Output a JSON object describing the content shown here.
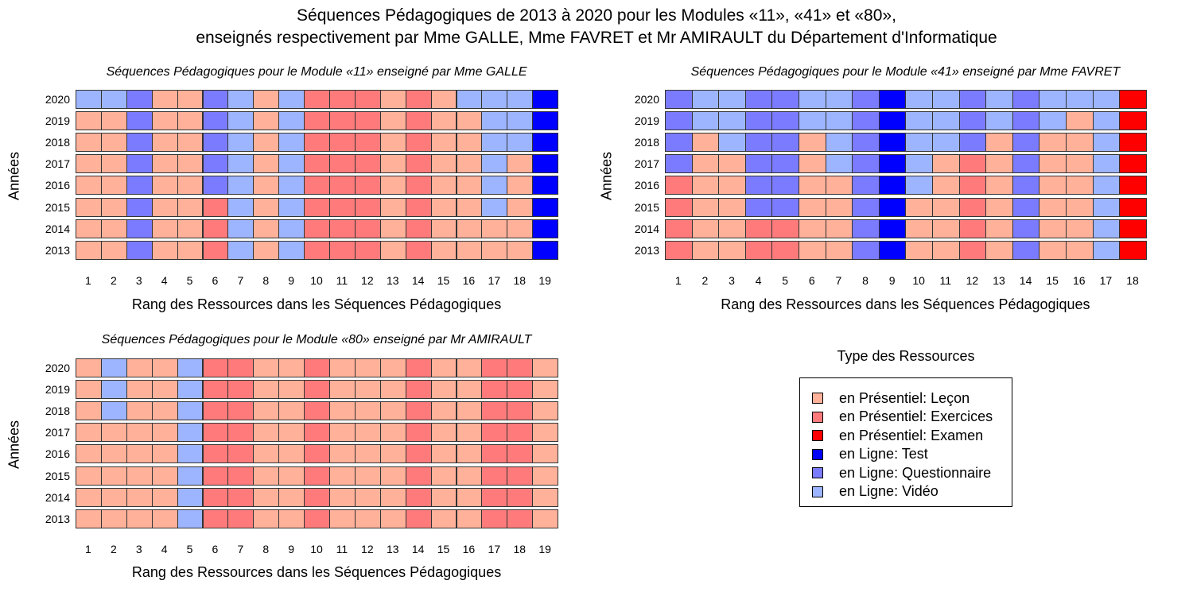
{
  "title": {
    "line1": "Séquences Pédagogiques de 2013 à 2020 pour les Modules «11», «41» et «80»,",
    "line2": "enseignés respectivement par Mme GALLE, Mme FAVRET et Mr AMIRAULT du Département d'Informatique"
  },
  "colors": {
    "lecon": "#FFB19A",
    "exercices": "#FF7B7B",
    "examen": "#FF0000",
    "test": "#0000FF",
    "questionnaire": "#7B7BFF",
    "video": "#9DB5FF"
  },
  "legend": {
    "title": "Type des Ressources",
    "items": [
      {
        "key": "lecon",
        "label": "en Présentiel: Leçon"
      },
      {
        "key": "exercices",
        "label": "en Présentiel: Exercices"
      },
      {
        "key": "examen",
        "label": "en Présentiel: Examen"
      },
      {
        "key": "test",
        "label": "en Ligne: Test"
      },
      {
        "key": "questionnaire",
        "label": "en Ligne: Questionnaire"
      },
      {
        "key": "video",
        "label": "en Ligne: Vidéo"
      }
    ]
  },
  "chart_data": [
    {
      "type": "heatmap",
      "title": "Séquences Pédagogiques pour le Module «11» enseigné par Mme GALLE",
      "xlabel": "Rang des Ressources dans les Séquences Pédagogiques",
      "ylabel": "Années",
      "years": [
        "2020",
        "2019",
        "2018",
        "2017",
        "2016",
        "2015",
        "2014",
        "2013"
      ],
      "ranks": [
        "1",
        "2",
        "3",
        "4",
        "5",
        "6",
        "7",
        "8",
        "9",
        "10",
        "11",
        "12",
        "13",
        "14",
        "15",
        "16",
        "17",
        "18",
        "19"
      ],
      "code_key": {
        "L": "lecon",
        "E": "exercices",
        "X": "examen",
        "T": "test",
        "Q": "questionnaire",
        "V": "video"
      },
      "rows": [
        "VVQLLQVLVEEELELVVVT",
        "LLQLLQVLVEEELELLVVT",
        "LLQLLQVLVEEELELLVVT",
        "LLQLLQVLVEEELELLVLT",
        "LLQLLQVLVEEELELLVLT",
        "LLQLLEVLVEEELELLVLT",
        "LLQLLEVLVEEELELLLLT",
        "LLQLLEVLVEEELELLLLT"
      ]
    },
    {
      "type": "heatmap",
      "title": "Séquences Pédagogiques pour le Module «41» enseigné par Mme FAVRET",
      "xlabel": "Rang des Ressources dans les Séquences Pédagogiques",
      "ylabel": "Années",
      "years": [
        "2020",
        "2019",
        "2018",
        "2017",
        "2016",
        "2015",
        "2014",
        "2013"
      ],
      "ranks": [
        "1",
        "2",
        "3",
        "4",
        "5",
        "6",
        "7",
        "8",
        "9",
        "10",
        "11",
        "12",
        "13",
        "14",
        "15",
        "16",
        "17",
        "18"
      ],
      "code_key": {
        "L": "lecon",
        "E": "exercices",
        "X": "examen",
        "T": "test",
        "Q": "questionnaire",
        "V": "video"
      },
      "rows": [
        "QVVQQVVQTVVQVQVVVX",
        "QVVQQVVQTVVQVQVLVX",
        "QLVQQLVQTVVQLQLLVX",
        "QLLQQLVQTVLELQLLVX",
        "ELLQQLLQTVLELQLLVX",
        "ELLQQLLQTLLELQLLVX",
        "ELLEELLQTLLELQLLVX",
        "ELLEELLQTLLELQLLVX"
      ]
    },
    {
      "type": "heatmap",
      "title": "Séquences Pédagogiques pour le Module «80» enseigné par Mr AMIRAULT",
      "xlabel": "Rang des Ressources dans les Séquences Pédagogiques",
      "ylabel": "Années",
      "years": [
        "2020",
        "2019",
        "2018",
        "2017",
        "2016",
        "2015",
        "2014",
        "2013"
      ],
      "ranks": [
        "1",
        "2",
        "3",
        "4",
        "5",
        "6",
        "7",
        "8",
        "9",
        "10",
        "11",
        "12",
        "13",
        "14",
        "15",
        "16",
        "17",
        "18",
        "19"
      ],
      "code_key": {
        "L": "lecon",
        "E": "exercices",
        "X": "examen",
        "T": "test",
        "Q": "questionnaire",
        "V": "video"
      },
      "rows": [
        "LVLLVEELLELLLELLEEL",
        "LVLLVEELLELLLELLEEL",
        "LVLLVEELLELLLELLEEL",
        "LLLLVEELLELLLELLEEL",
        "LLLLVEELLELLLELLEEL",
        "LLLLVEELLELLLELLEEL",
        "LLLLVEELLELLLELLEEL",
        "LLLLVEELLELLLELLEEL"
      ]
    }
  ]
}
